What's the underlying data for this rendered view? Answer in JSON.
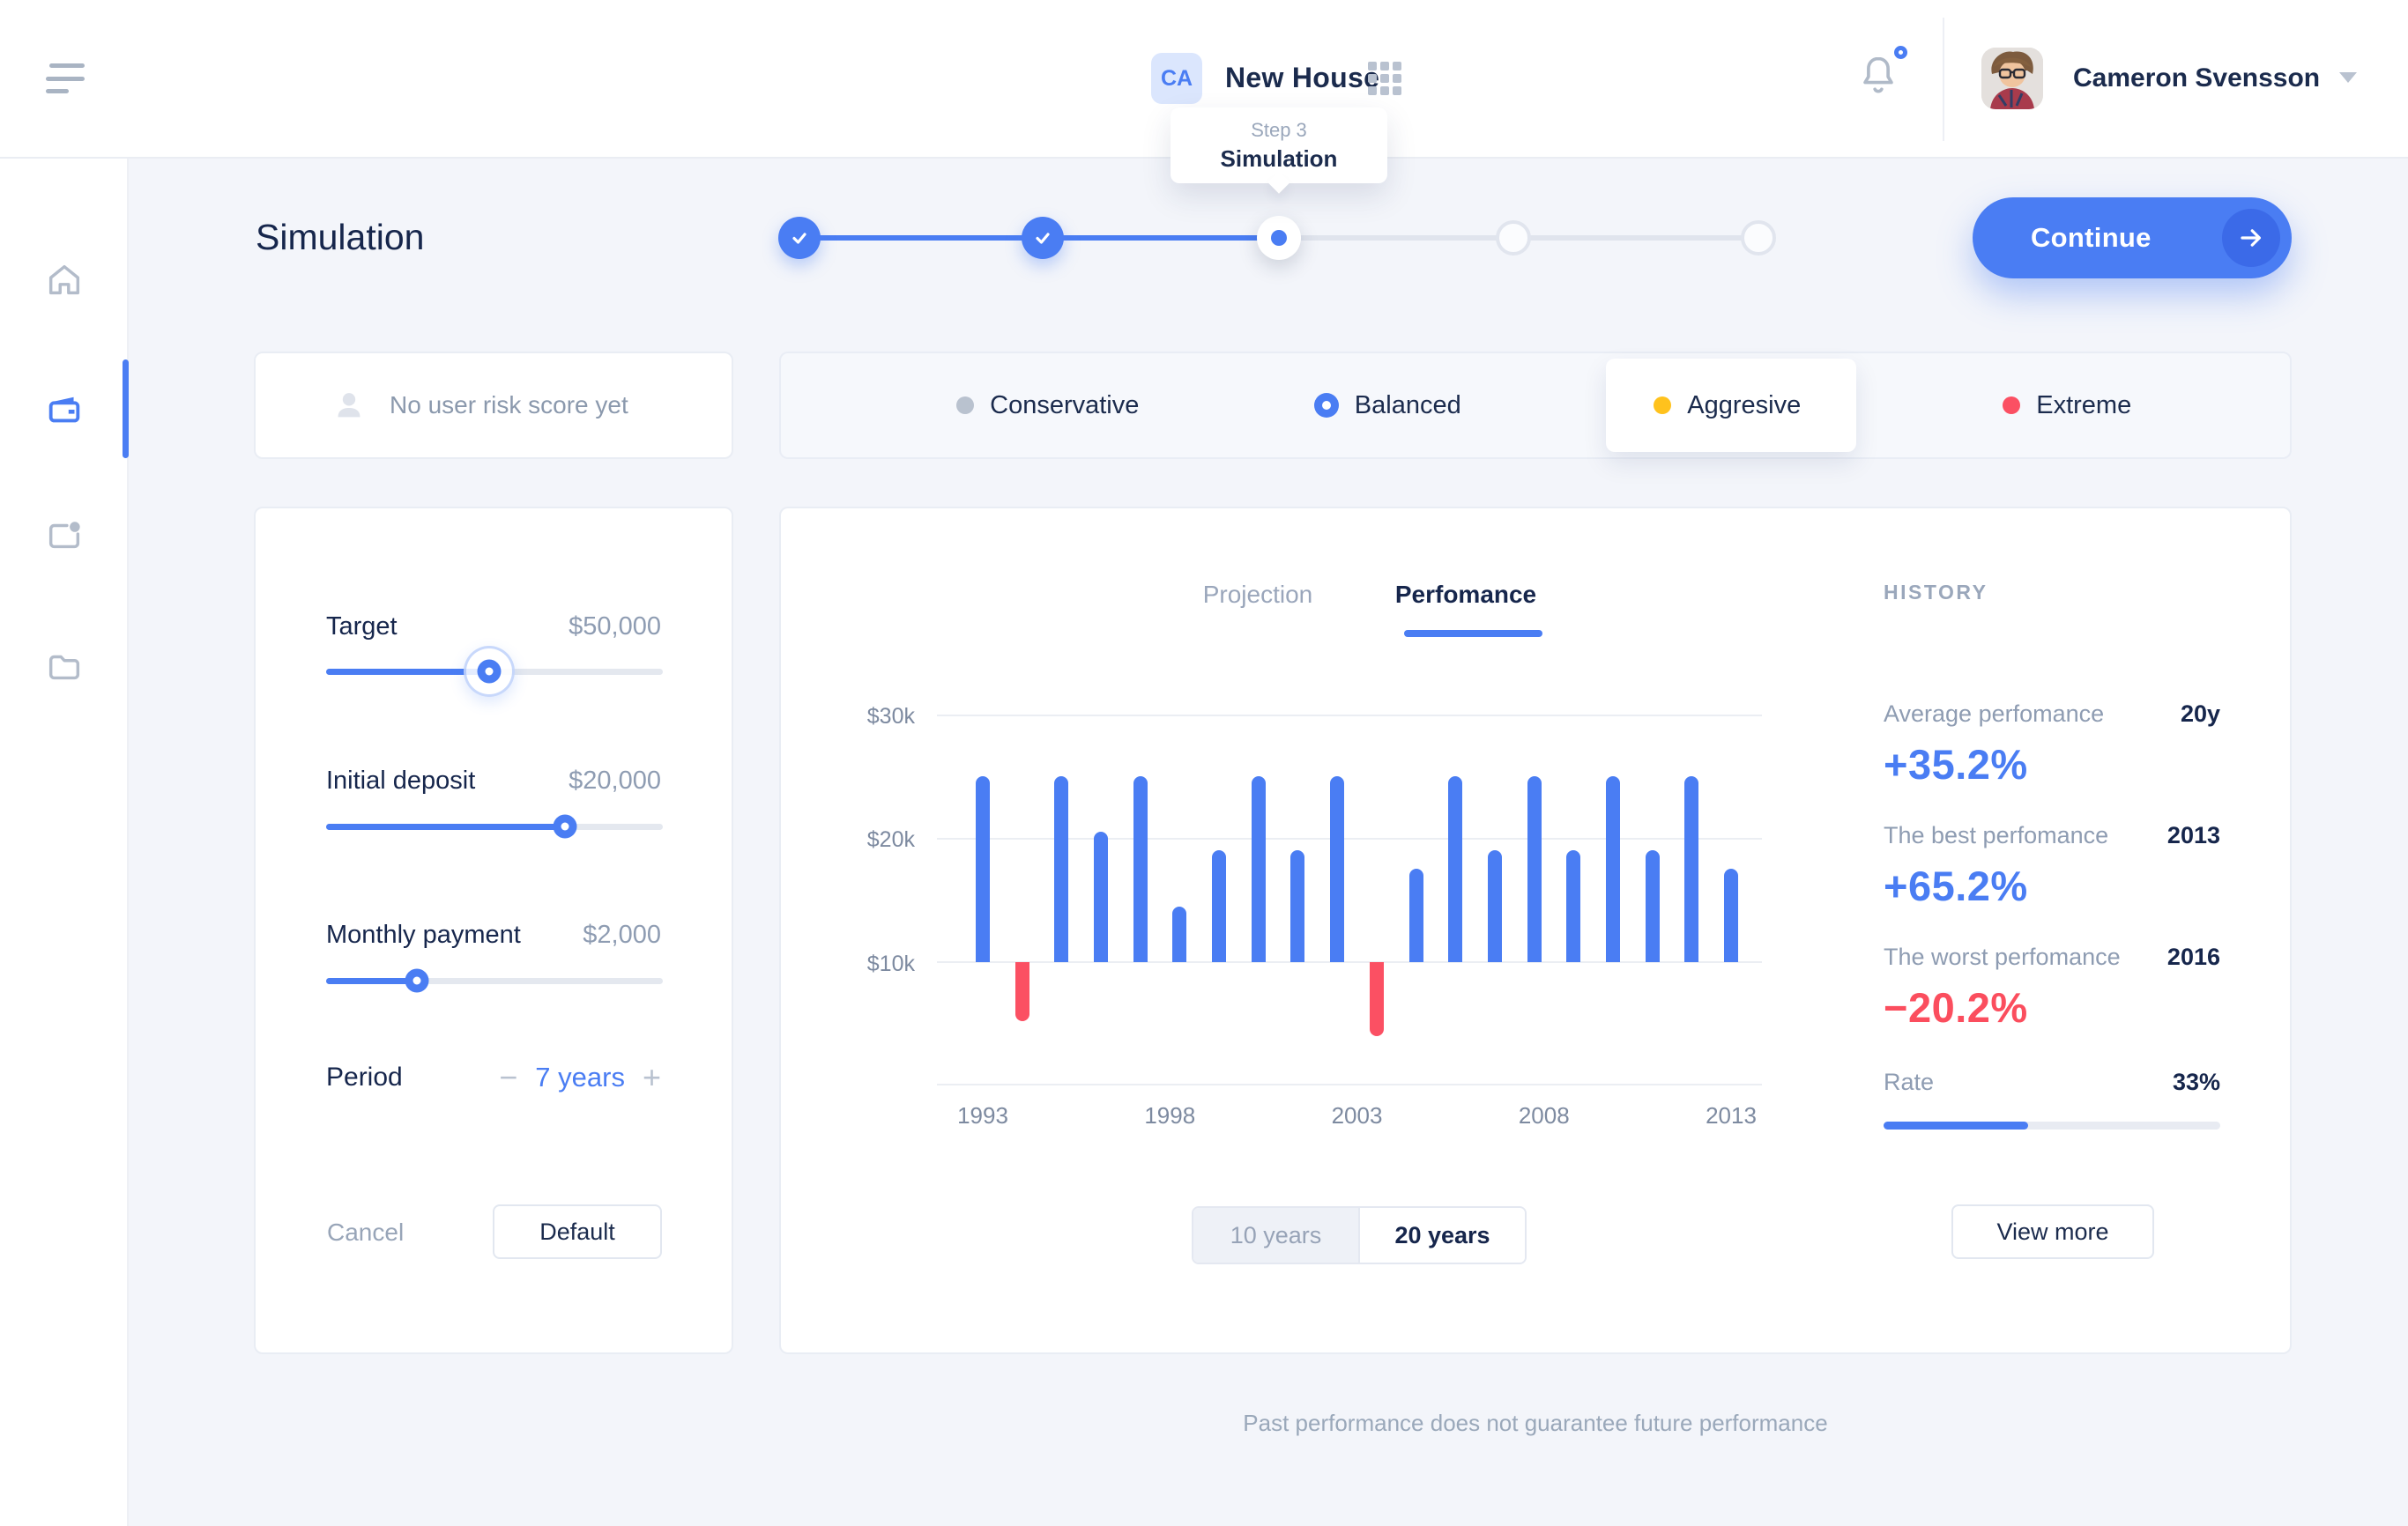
{
  "header": {
    "project_initials": "CA",
    "title": "New House",
    "user_name": "Cameron Svensson",
    "notifications_unread": true
  },
  "tooltip": {
    "step": "Step 3",
    "name": "Simulation"
  },
  "page": {
    "title": "Simulation",
    "continue_label": "Continue"
  },
  "stepper": {
    "steps_done": 2,
    "current_step": 3,
    "total_steps": 5
  },
  "risk": {
    "empty_note": "No user risk score yet",
    "options": [
      {
        "label": "Conservative",
        "color": "#b9c2cf",
        "selected": false
      },
      {
        "label": "Balanced",
        "color": "#4a7df3",
        "selected": true
      },
      {
        "label": "Aggresive",
        "color": "#ffc21d",
        "selected": false
      },
      {
        "label": "Extreme",
        "color": "#fb5063",
        "selected": false
      }
    ]
  },
  "params": {
    "sliders": [
      {
        "label": "Target",
        "value": "$50,000",
        "percent": 48.5
      },
      {
        "label": "Initial deposit",
        "value": "$20,000",
        "percent": 71
      },
      {
        "label": "Monthly payment",
        "value": "$2,000",
        "percent": 27
      }
    ],
    "period": {
      "label": "Period",
      "value": "7 years",
      "minus": "−",
      "plus": "+"
    },
    "cancel_label": "Cancel",
    "default_label": "Default"
  },
  "tabs": {
    "projection": "Projection",
    "performance": "Perfomance"
  },
  "chart_data": {
    "type": "bar",
    "x": [
      1993,
      1994,
      1995,
      1996,
      1997,
      1998,
      1999,
      2000,
      2001,
      2002,
      2003,
      2004,
      2005,
      2006,
      2007,
      2008,
      2009,
      2010,
      2011,
      2012
    ],
    "values": [
      25,
      5.2,
      25,
      20.5,
      25,
      14.5,
      19,
      25,
      19,
      25,
      4,
      17.5,
      25,
      19,
      25,
      19,
      25,
      19,
      25,
      17.5
    ],
    "baseline": 10,
    "unit": "$k",
    "ylim": [
      0,
      30
    ],
    "y_ticks": [
      "$30k",
      "$20k",
      "$10k"
    ],
    "x_ticks": [
      "1993",
      "1998",
      "2003",
      "2008",
      "2013"
    ],
    "positive_color": "#4a7df3",
    "negative_color": "#fb5063",
    "grid": true,
    "legend": null
  },
  "range_toggle": {
    "options": [
      {
        "label": "10 years",
        "selected": false
      },
      {
        "label": "20 years",
        "selected": true
      }
    ]
  },
  "history": {
    "heading": "HISTORY",
    "items": [
      {
        "label": "Average perfomance",
        "meta": "20y",
        "value": "+35.2%",
        "color": "#4a7df3"
      },
      {
        "label": "The best perfomance",
        "meta": "2013",
        "value": "+65.2%",
        "color": "#4a7df3"
      },
      {
        "label": "The worst perfomance",
        "meta": "2016",
        "value": "−20.2%",
        "color": "#fb4e5e"
      }
    ],
    "rate": {
      "label": "Rate",
      "value": "33%",
      "percent": 43
    },
    "view_more_label": "View more"
  },
  "footer": {
    "disclaimer": "Past performance does not guarantee future performance"
  },
  "colors": {
    "accent": "#4a7df3",
    "accent_dark": "#3b6ae8",
    "navy": "#1b2b4d",
    "gray": "#93a1b5",
    "red": "#fb4e5e",
    "yellow": "#ffc21d",
    "page_bg": "#f3f5fa"
  }
}
